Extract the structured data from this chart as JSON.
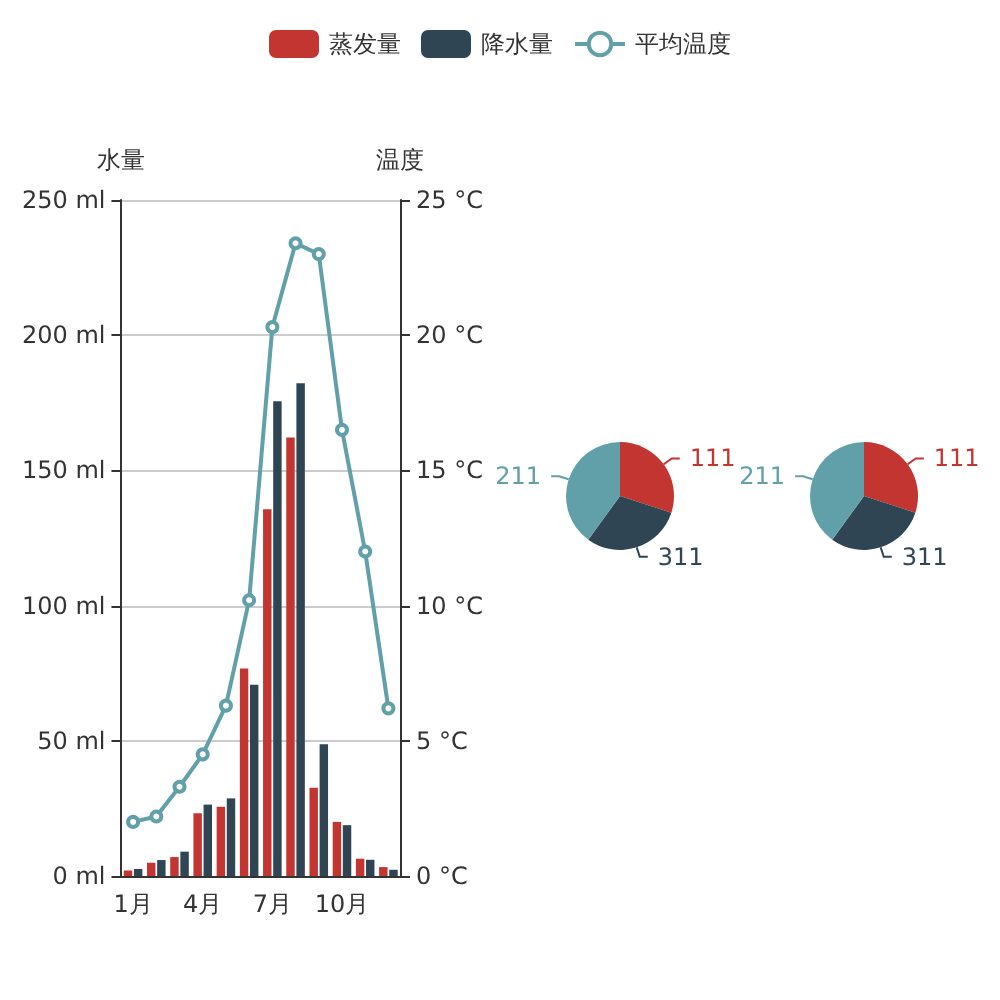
{
  "chart_data": [
    {
      "type": "bar",
      "categories": [
        "1月",
        null,
        null,
        "4月",
        null,
        null,
        "7月",
        null,
        null,
        "10月",
        null,
        null
      ],
      "series": [
        {
          "name": "蒸发量",
          "type": "bar",
          "color": "#c23531",
          "values": [
            2.0,
            4.9,
            7.0,
            23.2,
            25.6,
            76.7,
            135.6,
            162.2,
            32.6,
            20.0,
            6.4,
            3.3
          ]
        },
        {
          "name": "降水量",
          "type": "bar",
          "color": "#2f4554",
          "values": [
            2.6,
            5.9,
            9.0,
            26.4,
            28.7,
            70.7,
            175.6,
            182.2,
            48.7,
            18.8,
            6.0,
            2.3
          ]
        },
        {
          "name": "平均温度",
          "type": "line",
          "axis": "y2",
          "marker": "circle",
          "color": "#61a0a8",
          "values": [
            2.0,
            2.2,
            3.3,
            4.5,
            6.3,
            10.2,
            20.3,
            23.4,
            23.0,
            16.5,
            12.0,
            6.2
          ]
        }
      ],
      "ylabel": "水量",
      "y2label": "温度",
      "ylim": [
        0,
        250
      ],
      "yticks": [
        {
          "value": 0,
          "label": "0 ml"
        },
        {
          "value": 50,
          "label": "50 ml"
        },
        {
          "value": 100,
          "label": "100 ml"
        },
        {
          "value": 150,
          "label": "150 ml"
        },
        {
          "value": 200,
          "label": "200 ml"
        },
        {
          "value": 250,
          "label": "250 ml"
        }
      ],
      "y2lim": [
        0,
        25
      ],
      "y2ticks": [
        {
          "value": 0,
          "label": "0 °C"
        },
        {
          "value": 5,
          "label": "5 °C"
        },
        {
          "value": 10,
          "label": "10 °C"
        },
        {
          "value": 15,
          "label": "15 °C"
        },
        {
          "value": 20,
          "label": "20 °C"
        },
        {
          "value": 25,
          "label": "25 °C"
        }
      ],
      "grid": "y",
      "legend": "top"
    },
    {
      "type": "pie",
      "categories": [
        "111",
        "311",
        "211"
      ],
      "values": [
        30,
        30,
        40
      ],
      "colors": [
        "#c23531",
        "#2f4554",
        "#61a0a8"
      ]
    },
    {
      "type": "pie",
      "categories": [
        "111",
        "311",
        "211"
      ],
      "values": [
        30,
        30,
        40
      ],
      "colors": [
        "#c23531",
        "#2f4554",
        "#61a0a8"
      ]
    }
  ]
}
